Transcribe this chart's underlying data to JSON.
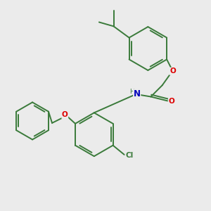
{
  "background_color": "#ebebeb",
  "bond_color": "#3a7a3a",
  "atom_colors": {
    "O": "#dd0000",
    "N": "#0000bb",
    "Cl": "#3a7a3a",
    "H": "#3a7a3a",
    "C": "#3a7a3a"
  },
  "figsize": [
    3.0,
    3.0
  ],
  "dpi": 100
}
